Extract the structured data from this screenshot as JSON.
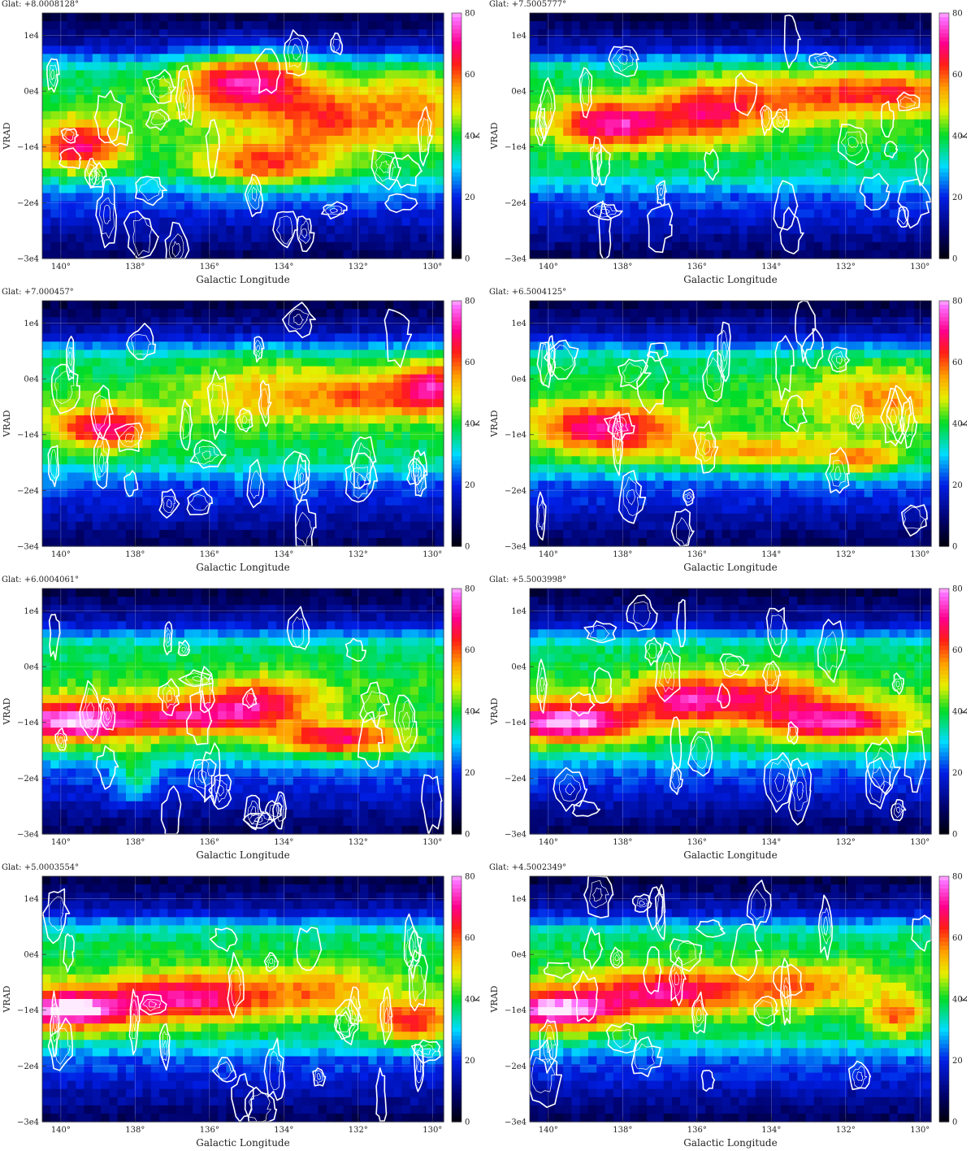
{
  "chart_data": {
    "type": "heatmap",
    "layout": {
      "rows": 4,
      "cols": 2
    },
    "xlabel": "Galactic Longitude",
    "ylabel": "VRAD",
    "colorbar": {
      "label": "K",
      "range": [
        0,
        80
      ],
      "ticks": [
        0,
        20,
        40,
        60,
        80
      ]
    },
    "xlim": [
      140.5,
      129.7
    ],
    "ylim": [
      -30000,
      14000
    ],
    "xticks": [
      140,
      138,
      136,
      134,
      132,
      130
    ],
    "xtick_labels": [
      "140°",
      "138°",
      "136°",
      "134°",
      "132°",
      "130°"
    ],
    "yticks": [
      10000,
      0,
      -10000,
      -20000,
      -30000
    ],
    "ytick_labels": [
      "1e4",
      "0e4",
      "−1e4",
      "−2e4",
      "−3e4"
    ],
    "overlay": "white contours",
    "panels": [
      {
        "glat_label": "Glat:  +8.0008128°",
        "glat": 8.0008128,
        "features": [
          {
            "l": 135.0,
            "v": 1500,
            "peak": 75,
            "sl": 1.2,
            "sv": 4000
          },
          {
            "l": 134.5,
            "v": -13000,
            "peak": 65,
            "sl": 1.3,
            "sv": 3000
          },
          {
            "l": 139.5,
            "v": -10000,
            "peak": 70,
            "sl": 0.8,
            "sv": 3000
          },
          {
            "l": 132.8,
            "v": -5000,
            "peak": 58,
            "sl": 1.0,
            "sv": 4000
          },
          {
            "l": 130.5,
            "v": -3000,
            "peak": 55,
            "sl": 1.0,
            "sv": 5000
          }
        ]
      },
      {
        "glat_label": "Glat:  +7.5005777°",
        "glat": 7.5005777,
        "features": [
          {
            "l": 138.3,
            "v": -6000,
            "peak": 72,
            "sl": 1.0,
            "sv": 3000
          },
          {
            "l": 135.8,
            "v": -4000,
            "peak": 62,
            "sl": 1.0,
            "sv": 4000
          },
          {
            "l": 133.5,
            "v": -1000,
            "peak": 58,
            "sl": 1.5,
            "sv": 3000
          },
          {
            "l": 130.8,
            "v": 0,
            "peak": 62,
            "sl": 1.2,
            "sv": 2500
          }
        ]
      },
      {
        "glat_label": "Glat:  +7.000457°",
        "glat": 7.000457,
        "features": [
          {
            "l": 138.8,
            "v": -9000,
            "peak": 72,
            "sl": 0.9,
            "sv": 2500
          },
          {
            "l": 131.5,
            "v": -3000,
            "peak": 58,
            "sl": 1.3,
            "sv": 3000
          },
          {
            "l": 130.0,
            "v": -1000,
            "peak": 65,
            "sl": 0.6,
            "sv": 3000
          },
          {
            "l": 134.5,
            "v": -2000,
            "peak": 52,
            "sl": 1.5,
            "sv": 4000
          }
        ]
      },
      {
        "glat_label": "Glat:  +6.5004125°",
        "glat": 6.5004125,
        "features": [
          {
            "l": 138.5,
            "v": -9000,
            "peak": 72,
            "sl": 1.3,
            "sv": 3000
          },
          {
            "l": 134.5,
            "v": -13000,
            "peak": 58,
            "sl": 2.0,
            "sv": 2000
          },
          {
            "l": 131.5,
            "v": -15000,
            "peak": 58,
            "sl": 0.6,
            "sv": 2000
          },
          {
            "l": 131.0,
            "v": -3000,
            "peak": 55,
            "sl": 1.5,
            "sv": 4000
          }
        ]
      },
      {
        "glat_label": "Glat:  +6.0004061°",
        "glat": 6.0004061,
        "features": [
          {
            "l": 139.8,
            "v": -10000,
            "peak": 82,
            "sl": 1.2,
            "sv": 2500
          },
          {
            "l": 136.5,
            "v": -9000,
            "peak": 70,
            "sl": 1.5,
            "sv": 2500
          },
          {
            "l": 132.5,
            "v": -13000,
            "peak": 72,
            "sl": 1.2,
            "sv": 2000
          },
          {
            "l": 138.0,
            "v": -20000,
            "peak": 55,
            "sl": 0.4,
            "sv": 3500
          },
          {
            "l": 134.5,
            "v": -6000,
            "peak": 62,
            "sl": 1.0,
            "sv": 3000
          }
        ]
      },
      {
        "glat_label": "Glat:  +5.5003998°",
        "glat": 5.5003998,
        "features": [
          {
            "l": 139.5,
            "v": -10000,
            "peak": 84,
            "sl": 1.3,
            "sv": 2500
          },
          {
            "l": 136.3,
            "v": -6000,
            "peak": 70,
            "sl": 1.0,
            "sv": 3000
          },
          {
            "l": 132.3,
            "v": -10000,
            "peak": 75,
            "sl": 1.4,
            "sv": 2500
          },
          {
            "l": 134.0,
            "v": -5000,
            "peak": 60,
            "sl": 1.0,
            "sv": 3000
          }
        ]
      },
      {
        "glat_label": "Glat:  +5.0003554°",
        "glat": 5.0003554,
        "features": [
          {
            "l": 139.8,
            "v": -10000,
            "peak": 84,
            "sl": 1.2,
            "sv": 2500
          },
          {
            "l": 136.5,
            "v": -8000,
            "peak": 72,
            "sl": 1.5,
            "sv": 3000
          },
          {
            "l": 130.5,
            "v": -12000,
            "peak": 68,
            "sl": 0.8,
            "sv": 2500
          },
          {
            "l": 133.0,
            "v": -7000,
            "peak": 55,
            "sl": 1.2,
            "sv": 3000
          }
        ]
      },
      {
        "glat_label": "Glat:  +4.5002349°",
        "glat": 4.5002349,
        "features": [
          {
            "l": 139.8,
            "v": -10000,
            "peak": 84,
            "sl": 1.1,
            "sv": 2500
          },
          {
            "l": 137.0,
            "v": -7000,
            "peak": 68,
            "sl": 1.3,
            "sv": 3000
          },
          {
            "l": 130.6,
            "v": -11000,
            "peak": 62,
            "sl": 0.5,
            "sv": 2500
          },
          {
            "l": 133.5,
            "v": -6000,
            "peak": 58,
            "sl": 1.5,
            "sv": 3000
          }
        ]
      }
    ]
  }
}
